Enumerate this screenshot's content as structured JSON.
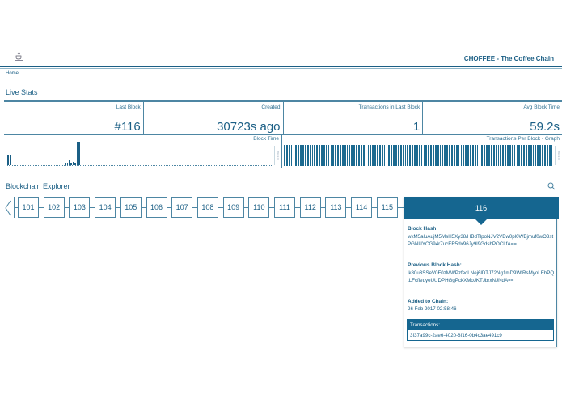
{
  "header": {
    "logo_text": "Choffee",
    "title": "CHOFFEE - The Coffee Chain"
  },
  "breadcrumb": {
    "home": "Home"
  },
  "live_stats": {
    "title": "Live Stats",
    "cells": [
      {
        "label": "Last Block",
        "value": "#116"
      },
      {
        "label": "Created",
        "value": "30723s ago"
      },
      {
        "label": "Transactions in Last Block",
        "value": "1"
      },
      {
        "label": "Avg Block Time",
        "value": "59.2s"
      }
    ],
    "graphs": {
      "block_time": {
        "label": "Block Time",
        "scroll_label": "Block 0"
      },
      "tx_per_block": {
        "label": "Transactions Per Block - Graph",
        "scroll_label": "Block 0"
      }
    }
  },
  "explorer": {
    "title": "Blockchain Explorer",
    "search_icon": "search-icon",
    "prev_icon": "chevron-left-icon",
    "blocks": [
      "101",
      "102",
      "103",
      "104",
      "105",
      "106",
      "107",
      "108",
      "109",
      "110",
      "111",
      "112",
      "113",
      "114",
      "115"
    ],
    "selected": {
      "number": "116",
      "block_hash_label": "Block Hash:",
      "block_hash": "wkM5aluAujM5MsH5Xy38/HBdTlpoNJV2VBw0pl0WBjmuf0wO3stPGNUYCG94r7ucER5dx96Jy9l9GdsbPOCLfA==",
      "prev_hash_label": "Previous Block Hash:",
      "prev_hash": "lk80u3SSeV0F0zMWPzfecLNej6lDTJ72Ng1mD9WfRsMyoLEbPQtLFcfieuyeUUDPHGgPckXMoJKTJbrxNJNdA==",
      "added_label": "Added to Chain:",
      "added": "26 Feb 2017 02:58:46",
      "transactions_label": "Transactions:",
      "transactions": [
        "3f37a99c-2ae6-4020-8f16-0b4c3ae491c9"
      ]
    }
  },
  "colors": {
    "primary": "#156690",
    "text": "#1b5f85",
    "border": "#4d86a3"
  },
  "chart_data": [
    {
      "type": "bar",
      "title": "Block Time",
      "note": "relative bar heights (0-1), left to right",
      "values": [
        0.15,
        0.45,
        0.42,
        0,
        0,
        0,
        0,
        0,
        0,
        0,
        0,
        0,
        0,
        0,
        0,
        0,
        0,
        0,
        0,
        0,
        0,
        0,
        0,
        0,
        0,
        0,
        0,
        0,
        0,
        0,
        0.12,
        0.1,
        0.25,
        0.1,
        0.15,
        0.1,
        1.0,
        1.0
      ]
    },
    {
      "type": "bar",
      "title": "Transactions Per Block - Graph",
      "note": "uniform bars, 1 transaction per block",
      "values_description": "all blocks = 1"
    }
  ]
}
